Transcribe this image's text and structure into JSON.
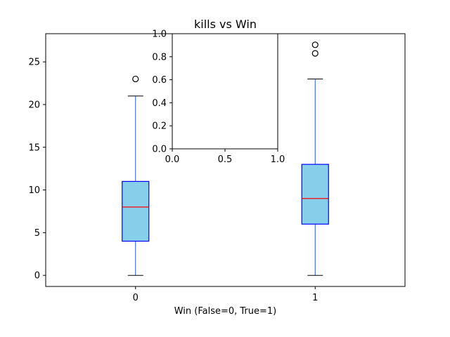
{
  "chart_data": [
    {
      "type": "box",
      "title": "kills vs Win",
      "xlabel": "Win (False=0, True=1)",
      "ylabel": "",
      "ylim": [
        -1.3,
        28.3
      ],
      "yticks": [
        0,
        5,
        10,
        15,
        20,
        25
      ],
      "categories": [
        "0",
        "1"
      ],
      "boxes": [
        {
          "category": "0",
          "whisker_low": 0,
          "q1": 4,
          "median": 8,
          "q3": 11,
          "whisker_high": 21,
          "outliers": [
            23
          ]
        },
        {
          "category": "1",
          "whisker_low": 0,
          "q1": 6,
          "median": 9,
          "q3": 13,
          "whisker_high": 23,
          "outliers": [
            26,
            27
          ]
        }
      ],
      "grid": false,
      "colors": {
        "box_fill": "#87ceeb",
        "box_edge": "#0000ff",
        "median": "#ff0000",
        "whisker": "#1f5fbf"
      }
    },
    {
      "type": "empty-axes",
      "xlim": [
        0,
        1
      ],
      "ylim": [
        0,
        1
      ],
      "xticks": [
        "0.0",
        "0.5",
        "1.0"
      ],
      "yticks": [
        "0.0",
        "0.2",
        "0.4",
        "0.6",
        "0.8",
        "1.0"
      ]
    }
  ]
}
